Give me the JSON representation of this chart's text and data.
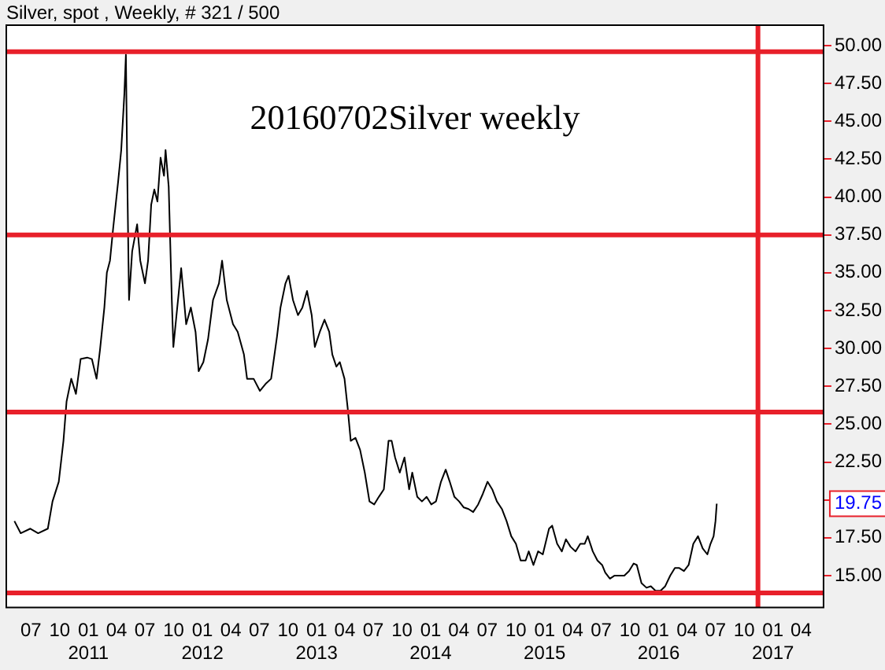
{
  "chart_data": {
    "type": "line",
    "title": "Silver, spot , Weekly, # 321 / 500",
    "annotations": [
      "20160702Silver weekly",
      "19.75"
    ],
    "x": [
      "2010-05-09",
      "2010-05-29",
      "2010-06-29",
      "2010-07-24",
      "2010-08-24",
      "2010-09-08",
      "2010-09-28",
      "2010-10-13",
      "2010-10-23",
      "2010-11-07",
      "2010-11-22",
      "2010-12-07",
      "2010-12-28",
      "2011-01-12",
      "2011-01-27",
      "2011-02-07",
      "2011-02-21",
      "2011-03-01",
      "2011-03-11",
      "2011-03-21",
      "2011-04-06",
      "2011-04-16",
      "2011-04-26",
      "2011-05-01",
      "2011-05-06",
      "2011-05-11",
      "2011-05-21",
      "2011-06-06",
      "2011-06-16",
      "2011-07-01",
      "2011-07-11",
      "2011-07-21",
      "2011-07-31",
      "2011-08-10",
      "2011-08-20",
      "2011-08-31",
      "2011-09-05",
      "2011-09-15",
      "2011-09-25",
      "2011-09-30",
      "2011-10-10",
      "2011-10-25",
      "2011-11-10",
      "2011-11-25",
      "2011-12-10",
      "2011-12-20",
      "2012-01-04",
      "2012-01-19",
      "2012-02-04",
      "2012-02-23",
      "2012-03-04",
      "2012-03-19",
      "2012-04-08",
      "2012-04-23",
      "2012-05-13",
      "2012-05-23",
      "2012-06-13",
      "2012-07-03",
      "2012-07-23",
      "2012-08-08",
      "2012-08-27",
      "2012-09-07",
      "2012-09-23",
      "2012-10-03",
      "2012-10-17",
      "2012-11-02",
      "2012-11-16",
      "2012-12-01",
      "2012-12-16",
      "2012-12-26",
      "2013-01-11",
      "2013-01-26",
      "2013-02-10",
      "2013-02-20",
      "2013-03-05",
      "2013-03-16",
      "2013-03-31",
      "2013-04-10",
      "2013-04-20",
      "2013-05-05",
      "2013-05-20",
      "2013-06-04",
      "2013-06-19",
      "2013-07-04",
      "2013-07-19",
      "2013-08-04",
      "2013-08-19",
      "2013-08-29",
      "2013-09-09",
      "2013-09-24",
      "2013-10-09",
      "2013-10-24",
      "2013-11-03",
      "2013-11-19",
      "2013-12-04",
      "2013-12-19",
      "2014-01-03",
      "2014-01-18",
      "2014-02-03",
      "2014-02-18",
      "2014-03-03",
      "2014-03-18",
      "2014-04-02",
      "2014-04-17",
      "2014-05-02",
      "2014-05-17",
      "2014-06-02",
      "2014-06-17",
      "2014-07-02",
      "2014-07-17",
      "2014-08-01",
      "2014-08-17",
      "2014-09-01",
      "2014-09-16",
      "2014-10-01",
      "2014-10-16",
      "2014-11-01",
      "2014-11-11",
      "2014-11-26",
      "2014-12-11",
      "2014-12-26",
      "2015-01-15",
      "2015-01-25",
      "2015-02-10",
      "2015-02-25",
      "2015-03-10",
      "2015-03-25",
      "2015-04-10",
      "2015-04-25",
      "2015-05-09",
      "2015-05-19",
      "2015-06-04",
      "2015-06-19",
      "2015-07-04",
      "2015-07-14",
      "2015-07-29",
      "2015-08-13",
      "2015-08-29",
      "2015-09-13",
      "2015-09-28",
      "2015-10-13",
      "2015-10-23",
      "2015-11-07",
      "2015-11-23",
      "2015-12-07",
      "2015-12-22",
      "2016-01-07",
      "2016-01-22",
      "2016-02-07",
      "2016-02-22",
      "2016-03-07",
      "2016-03-22",
      "2016-04-06",
      "2016-04-21",
      "2016-05-06",
      "2016-05-21",
      "2016-06-05",
      "2016-06-15",
      "2016-06-25",
      "2016-07-01",
      "2016-07-05"
    ],
    "series": [
      {
        "color": "#000000",
        "values": [
          18.6,
          17.8,
          18.1,
          17.8,
          18.1,
          19.9,
          21.2,
          23.9,
          26.5,
          28.0,
          27.0,
          29.3,
          29.4,
          29.3,
          28.0,
          29.9,
          32.7,
          35.0,
          35.8,
          37.9,
          41.0,
          43.1,
          46.8,
          49.4,
          40.5,
          33.2,
          36.4,
          38.2,
          35.8,
          34.3,
          35.8,
          39.5,
          40.5,
          39.7,
          42.6,
          41.4,
          43.1,
          40.7,
          33.2,
          30.1,
          32.2,
          35.3,
          31.6,
          32.7,
          31.1,
          28.5,
          29.1,
          30.6,
          33.2,
          34.3,
          35.8,
          33.2,
          31.6,
          31.1,
          29.6,
          28.0,
          28.0,
          27.2,
          27.7,
          28.0,
          30.8,
          32.7,
          34.3,
          34.8,
          33.2,
          32.2,
          32.7,
          33.8,
          32.2,
          30.1,
          31.1,
          31.9,
          31.1,
          29.6,
          28.8,
          29.1,
          28.0,
          26.1,
          23.9,
          24.1,
          23.3,
          21.8,
          19.9,
          19.7,
          20.2,
          20.7,
          23.9,
          23.9,
          22.8,
          21.8,
          22.8,
          20.7,
          21.8,
          20.2,
          19.9,
          20.2,
          19.7,
          19.9,
          21.2,
          22.0,
          21.2,
          20.2,
          19.9,
          19.5,
          19.4,
          19.2,
          19.7,
          20.4,
          21.2,
          20.7,
          19.9,
          19.4,
          18.6,
          17.6,
          17.1,
          16.0,
          16.0,
          16.6,
          15.7,
          16.6,
          16.4,
          18.1,
          18.3,
          17.1,
          16.6,
          17.4,
          16.9,
          16.6,
          17.1,
          17.1,
          17.6,
          16.6,
          16.0,
          15.7,
          15.2,
          14.8,
          15.0,
          15.0,
          15.0,
          15.3,
          15.8,
          15.7,
          14.5,
          14.2,
          14.3,
          14.0,
          14.0,
          14.3,
          15.0,
          15.5,
          15.5,
          15.3,
          15.7,
          17.1,
          17.6,
          16.8,
          16.4,
          17.1,
          17.6,
          18.6,
          19.75
        ]
      }
    ],
    "xlim": [
      "2010-04-13",
      "2017-06-12"
    ],
    "xticks": [
      {
        "value": "2010-07-01",
        "label": "07"
      },
      {
        "value": "2010-10-01",
        "label": "10"
      },
      {
        "value": "2011-01-01",
        "label": "01\n2011"
      },
      {
        "value": "2011-04-01",
        "label": "04"
      },
      {
        "value": "2011-07-01",
        "label": "07"
      },
      {
        "value": "2011-10-01",
        "label": "10"
      },
      {
        "value": "2012-01-01",
        "label": "01\n2012"
      },
      {
        "value": "2012-04-01",
        "label": "04"
      },
      {
        "value": "2012-07-01",
        "label": "07"
      },
      {
        "value": "2012-10-01",
        "label": "10"
      },
      {
        "value": "2013-01-01",
        "label": "01\n2013"
      },
      {
        "value": "2013-04-01",
        "label": "04"
      },
      {
        "value": "2013-07-01",
        "label": "07"
      },
      {
        "value": "2013-10-01",
        "label": "10"
      },
      {
        "value": "2014-01-01",
        "label": "01\n2014"
      },
      {
        "value": "2014-04-01",
        "label": "04"
      },
      {
        "value": "2014-07-01",
        "label": "07"
      },
      {
        "value": "2014-10-01",
        "label": "10"
      },
      {
        "value": "2015-01-01",
        "label": "01\n2015"
      },
      {
        "value": "2015-04-01",
        "label": "04"
      },
      {
        "value": "2015-07-01",
        "label": "07"
      },
      {
        "value": "2015-10-01",
        "label": "10"
      },
      {
        "value": "2016-01-01",
        "label": "01\n2016"
      },
      {
        "value": "2016-04-01",
        "label": "04"
      },
      {
        "value": "2016-07-01",
        "label": "07"
      },
      {
        "value": "2016-10-01",
        "label": "10"
      },
      {
        "value": "2017-01-01",
        "label": "01\n2017"
      },
      {
        "value": "2017-04-01",
        "label": "04"
      }
    ],
    "ylim": [
      12.9,
      51.35
    ],
    "yticks": [
      {
        "value": 15,
        "label": "15.00"
      },
      {
        "value": 17.5,
        "label": "17.50"
      },
      {
        "value": 20,
        "label": null
      },
      {
        "value": 22.5,
        "label": "22.50"
      },
      {
        "value": 25,
        "label": "25.00"
      },
      {
        "value": 27.5,
        "label": "27.50"
      },
      {
        "value": 30,
        "label": "30.00"
      },
      {
        "value": 32.5,
        "label": "32.50"
      },
      {
        "value": 35,
        "label": "35.00"
      },
      {
        "value": 37.5,
        "label": "37.50"
      },
      {
        "value": 40,
        "label": "40.00"
      },
      {
        "value": 42.5,
        "label": "42.50"
      },
      {
        "value": 45,
        "label": "45.00"
      },
      {
        "value": 47.5,
        "label": "47.50"
      },
      {
        "value": 50,
        "label": "50.00"
      }
    ],
    "ref_lines": [
      {
        "axis": "y",
        "value": 49.6,
        "color": "#e8202a"
      },
      {
        "axis": "y",
        "value": 37.5,
        "color": "#e8202a"
      },
      {
        "axis": "y",
        "value": 25.8,
        "color": "#e8202a"
      },
      {
        "axis": "y",
        "value": 13.85,
        "color": "#e8202a"
      },
      {
        "axis": "x",
        "value": "2016-11-14",
        "color": "#e8202a"
      }
    ],
    "grid": false,
    "legend": false,
    "marker": "none",
    "line_style": "solid"
  }
}
